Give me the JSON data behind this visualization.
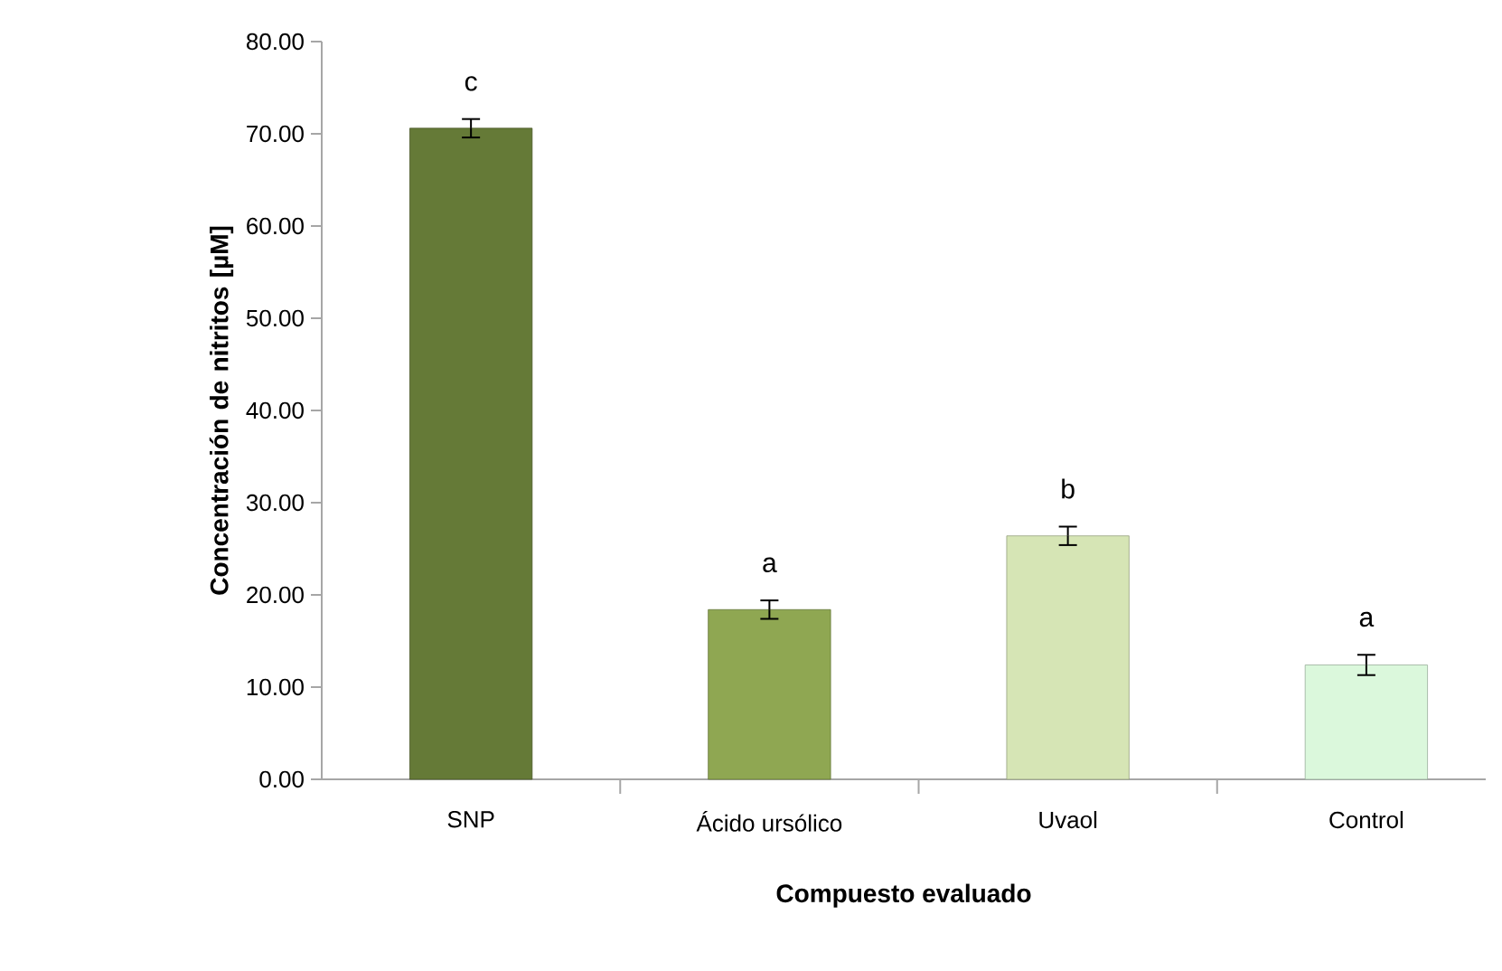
{
  "chart_data": {
    "type": "bar",
    "xlabel": "Compuesto evaluado",
    "ylabel": "Concentración de nitritos [µM]",
    "categories": [
      "SNP",
      "Ácido ursólico",
      "Uvaol",
      "Control"
    ],
    "values": [
      70.6,
      18.4,
      26.4,
      12.4
    ],
    "errors": [
      1.0,
      1.0,
      1.0,
      1.1
    ],
    "colors": [
      "#657a37",
      "#8fa752",
      "#d6e5b5",
      "#dbf8dc"
    ],
    "ylim": [
      0,
      80
    ],
    "yticks": [
      {
        "value": 0,
        "label": "0.00"
      },
      {
        "value": 10,
        "label": "10.00"
      },
      {
        "value": 20,
        "label": "20.00"
      },
      {
        "value": 30,
        "label": "30.00"
      },
      {
        "value": 40,
        "label": "40.00"
      },
      {
        "value": 50,
        "label": "50.00"
      },
      {
        "value": 60,
        "label": "60.00"
      },
      {
        "value": 70,
        "label": "70.00"
      },
      {
        "value": 80,
        "label": "80.00"
      }
    ],
    "grid": false,
    "annotations": [
      "c",
      "a",
      "b",
      "a"
    ]
  }
}
